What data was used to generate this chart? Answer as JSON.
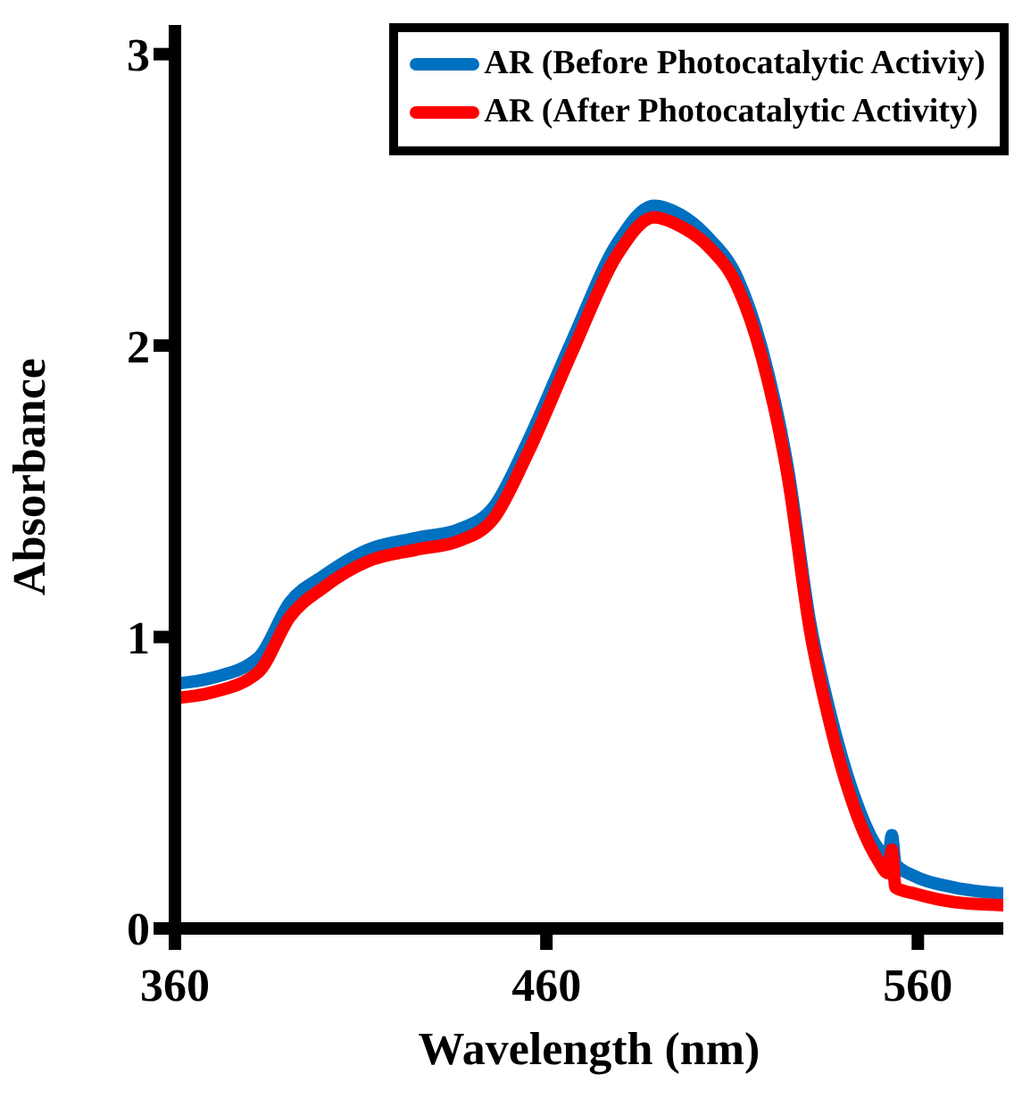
{
  "chart_data": {
    "type": "line",
    "xlabel": "Wavelength (nm)",
    "ylabel": "Absorbance",
    "xlim": [
      360,
      583
    ],
    "xticks": [
      360,
      460,
      560
    ],
    "ylim": [
      0,
      3.1
    ],
    "yticks": [
      0,
      1,
      2,
      3
    ],
    "grid": false,
    "legend": "top right",
    "marker": "none",
    "line_style": "solid",
    "series": [
      {
        "name": "AR (Before Photocatalytic Activiy)",
        "color": "#0070c0",
        "x": [
          360,
          370,
          382.5,
          391,
          400,
          412,
          425,
          436.5,
          446,
          454.6,
          467,
          479,
          489,
          496,
          503.6,
          511.5,
          518,
          525,
          531,
          536,
          543,
          549,
          552,
          553,
          554,
          559,
          570,
          583
        ],
        "values": [
          0.84,
          0.86,
          0.93,
          1.12,
          1.21,
          1.3,
          1.34,
          1.37,
          1.45,
          1.66,
          2.02,
          2.35,
          2.48,
          2.45,
          2.37,
          2.23,
          1.99,
          1.58,
          1.05,
          0.76,
          0.45,
          0.28,
          0.24,
          0.32,
          0.22,
          0.18,
          0.14,
          0.12
        ]
      },
      {
        "name": "AR (After Photocatalytic Activity)",
        "color": "#ff0000",
        "x": [
          360,
          370,
          382.5,
          391,
          400,
          412,
          425,
          436.5,
          446,
          454.6,
          467,
          479,
          489,
          496,
          503.6,
          511.5,
          518,
          525,
          531,
          536,
          543,
          549,
          552,
          553,
          554,
          559,
          570,
          583
        ],
        "values": [
          0.79,
          0.81,
          0.88,
          1.07,
          1.17,
          1.26,
          1.3,
          1.33,
          1.41,
          1.62,
          1.98,
          2.31,
          2.44,
          2.41,
          2.34,
          2.2,
          1.96,
          1.55,
          1.02,
          0.72,
          0.41,
          0.24,
          0.19,
          0.27,
          0.14,
          0.12,
          0.09,
          0.08
        ]
      }
    ]
  }
}
